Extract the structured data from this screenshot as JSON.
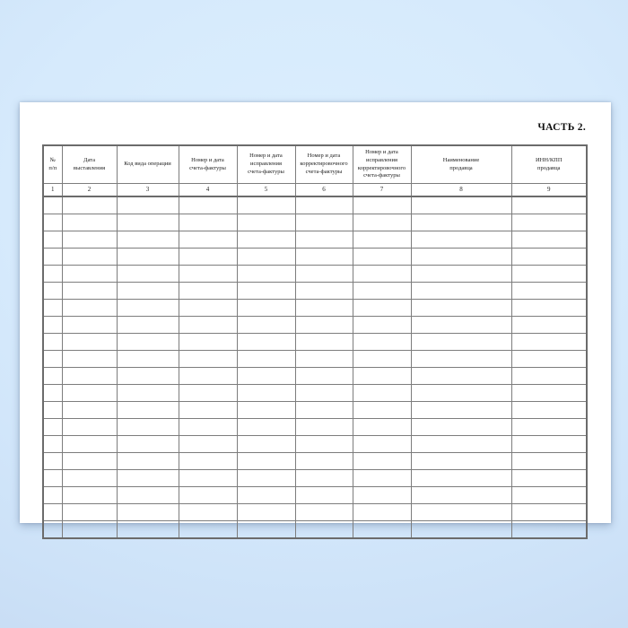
{
  "background": {
    "top_color": "#dceffe",
    "bottom_color": "#c3d8f0",
    "paper_color": "#ffffff"
  },
  "document": {
    "title": "ЧАСТЬ 2.",
    "table": {
      "border_color": "#6b6b6b",
      "empty_row_count": 20,
      "columns": [
        {
          "num": "1",
          "label": "№\nп/п"
        },
        {
          "num": "2",
          "label": "Дата\nвыставления"
        },
        {
          "num": "3",
          "label": "Код вида операции"
        },
        {
          "num": "4",
          "label": "Номер и дата\nсчета-фактуры"
        },
        {
          "num": "5",
          "label": "Номер и дата\nисправления\nсчета-фактуры"
        },
        {
          "num": "6",
          "label": "Номер и дата\nкорректировочного\nсчета-фактуры"
        },
        {
          "num": "7",
          "label": "Номер и дата\nисправления\nкорректировочного\nсчета-фактуры"
        },
        {
          "num": "8",
          "label": "Наименование\nпродавца"
        },
        {
          "num": "9",
          "label": "ИНН/КПП\nпродавца"
        }
      ]
    }
  }
}
